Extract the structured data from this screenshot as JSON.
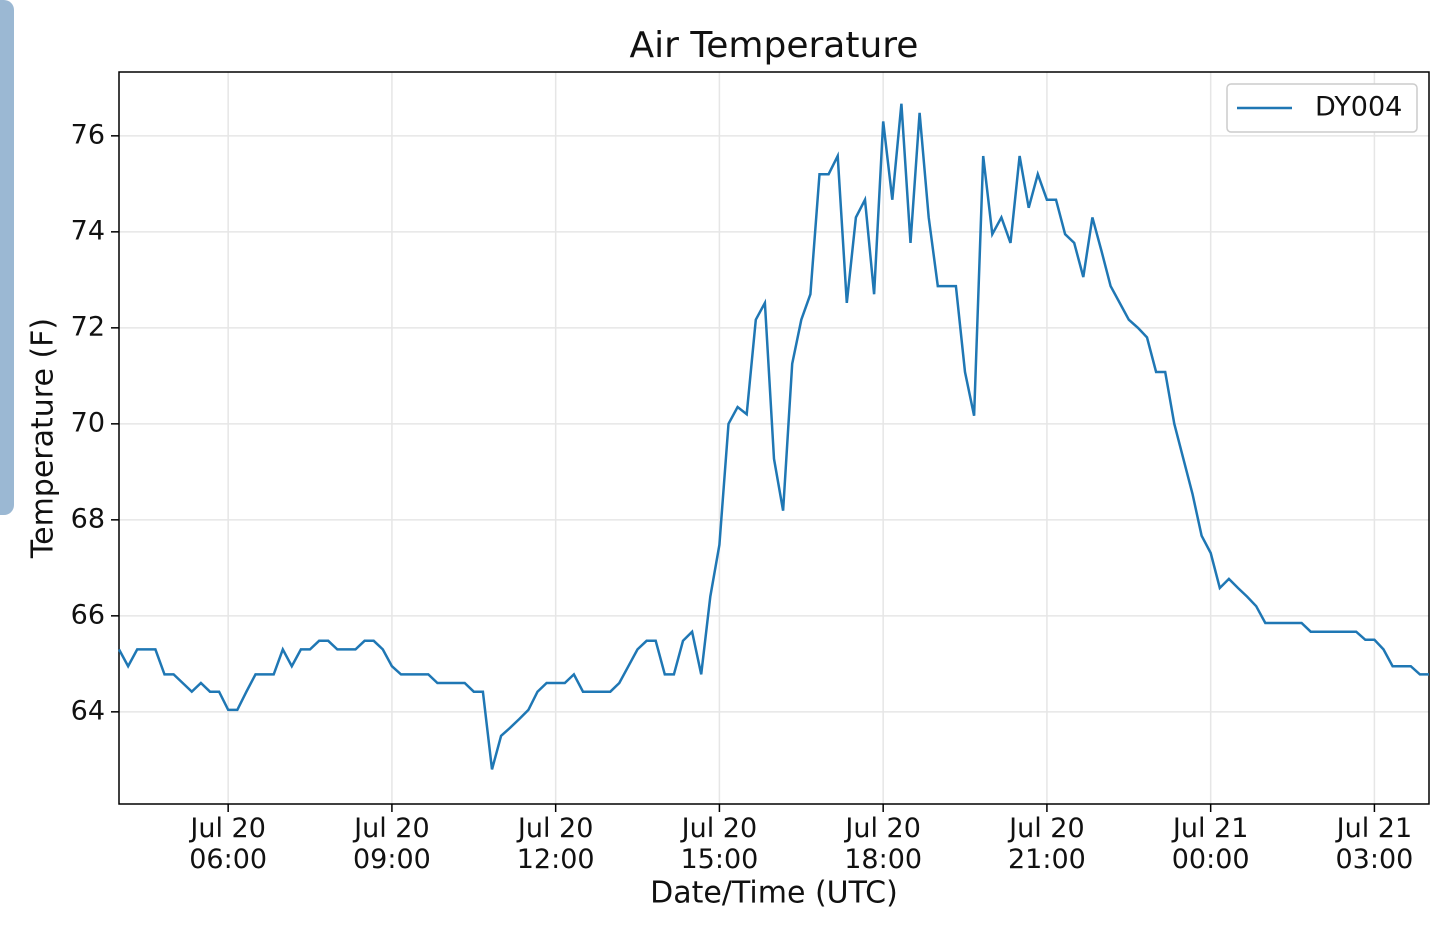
{
  "chart_data": {
    "type": "line",
    "title": "Air Temperature",
    "x_label": "Date/Time (UTC)",
    "y_label": "Temperature (F)",
    "x": [
      "Jul 20 04:00",
      "Jul 20 04:10",
      "Jul 20 04:20",
      "Jul 20 04:30",
      "Jul 20 04:40",
      "Jul 20 04:50",
      "Jul 20 05:00",
      "Jul 20 05:10",
      "Jul 20 05:20",
      "Jul 20 05:30",
      "Jul 20 05:40",
      "Jul 20 05:50",
      "Jul 20 06:00",
      "Jul 20 06:10",
      "Jul 20 06:20",
      "Jul 20 06:30",
      "Jul 20 06:40",
      "Jul 20 06:50",
      "Jul 20 07:00",
      "Jul 20 07:10",
      "Jul 20 07:20",
      "Jul 20 07:30",
      "Jul 20 07:40",
      "Jul 20 07:50",
      "Jul 20 08:00",
      "Jul 20 08:10",
      "Jul 20 08:20",
      "Jul 20 08:30",
      "Jul 20 08:40",
      "Jul 20 08:50",
      "Jul 20 09:00",
      "Jul 20 09:10",
      "Jul 20 09:20",
      "Jul 20 09:30",
      "Jul 20 09:40",
      "Jul 20 09:50",
      "Jul 20 10:00",
      "Jul 20 10:10",
      "Jul 20 10:20",
      "Jul 20 10:30",
      "Jul 20 10:40",
      "Jul 20 10:50",
      "Jul 20 11:00",
      "Jul 20 11:10",
      "Jul 20 11:20",
      "Jul 20 11:30",
      "Jul 20 11:40",
      "Jul 20 11:50",
      "Jul 20 12:00",
      "Jul 20 12:10",
      "Jul 20 12:20",
      "Jul 20 12:30",
      "Jul 20 12:40",
      "Jul 20 12:50",
      "Jul 20 13:00",
      "Jul 20 13:10",
      "Jul 20 13:20",
      "Jul 20 13:30",
      "Jul 20 13:40",
      "Jul 20 13:50",
      "Jul 20 14:00",
      "Jul 20 14:10",
      "Jul 20 14:20",
      "Jul 20 14:30",
      "Jul 20 14:40",
      "Jul 20 14:50",
      "Jul 20 15:00",
      "Jul 20 15:10",
      "Jul 20 15:20",
      "Jul 20 15:30",
      "Jul 20 15:40",
      "Jul 20 15:50",
      "Jul 20 16:00",
      "Jul 20 16:10",
      "Jul 20 16:20",
      "Jul 20 16:30",
      "Jul 20 16:40",
      "Jul 20 16:50",
      "Jul 20 17:00",
      "Jul 20 17:10",
      "Jul 20 17:20",
      "Jul 20 17:30",
      "Jul 20 17:40",
      "Jul 20 17:50",
      "Jul 20 18:00",
      "Jul 20 18:10",
      "Jul 20 18:20",
      "Jul 20 18:30",
      "Jul 20 18:40",
      "Jul 20 18:50",
      "Jul 20 19:00",
      "Jul 20 19:10",
      "Jul 20 19:20",
      "Jul 20 19:30",
      "Jul 20 19:40",
      "Jul 20 19:50",
      "Jul 20 20:00",
      "Jul 20 20:10",
      "Jul 20 20:20",
      "Jul 20 20:30",
      "Jul 20 20:40",
      "Jul 20 20:50",
      "Jul 20 21:00",
      "Jul 20 21:10",
      "Jul 20 21:20",
      "Jul 20 21:30",
      "Jul 20 21:40",
      "Jul 20 21:50",
      "Jul 20 22:00",
      "Jul 20 22:10",
      "Jul 20 22:20",
      "Jul 20 22:30",
      "Jul 20 22:40",
      "Jul 20 22:50",
      "Jul 20 23:00",
      "Jul 20 23:10",
      "Jul 20 23:20",
      "Jul 20 23:30",
      "Jul 20 23:40",
      "Jul 20 23:50",
      "Jul 21 00:00",
      "Jul 21 00:10",
      "Jul 21 00:20",
      "Jul 21 00:30",
      "Jul 21 00:40",
      "Jul 21 00:50",
      "Jul 21 01:00",
      "Jul 21 01:10",
      "Jul 21 01:20",
      "Jul 21 01:30",
      "Jul 21 01:40",
      "Jul 21 01:50",
      "Jul 21 02:00",
      "Jul 21 02:10",
      "Jul 21 02:20",
      "Jul 21 02:30",
      "Jul 21 02:40",
      "Jul 21 02:50",
      "Jul 21 03:00",
      "Jul 21 03:10",
      "Jul 21 03:20",
      "Jul 21 03:30",
      "Jul 21 03:40",
      "Jul 21 03:50",
      "Jul 21 04:00"
    ],
    "series": [
      {
        "name": "DY004",
        "color": "#1f77b4",
        "values": [
          65.3,
          64.95,
          65.3,
          65.3,
          65.3,
          64.78,
          64.78,
          64.6,
          64.42,
          64.6,
          64.42,
          64.42,
          64.04,
          64.04,
          64.42,
          64.78,
          64.78,
          64.78,
          65.3,
          64.95,
          65.3,
          65.3,
          65.48,
          65.48,
          65.3,
          65.3,
          65.3,
          65.48,
          65.48,
          65.3,
          64.95,
          64.78,
          64.78,
          64.78,
          64.78,
          64.6,
          64.6,
          64.6,
          64.6,
          64.42,
          64.42,
          62.8,
          63.5,
          63.67,
          63.85,
          64.04,
          64.42,
          64.6,
          64.6,
          64.6,
          64.78,
          64.42,
          64.42,
          64.42,
          64.42,
          64.6,
          64.95,
          65.3,
          65.48,
          65.48,
          64.78,
          64.78,
          65.48,
          65.67,
          64.78,
          66.4,
          67.48,
          70.0,
          70.35,
          70.2,
          72.17,
          72.52,
          69.27,
          68.19,
          71.25,
          72.17,
          72.7,
          75.2,
          75.2,
          75.58,
          72.52,
          74.3,
          74.67,
          72.7,
          76.3,
          74.67,
          76.67,
          73.77,
          76.48,
          74.3,
          72.87,
          72.87,
          72.87,
          71.08,
          70.17,
          75.58,
          73.95,
          74.3,
          73.77,
          75.58,
          74.5,
          75.2,
          74.67,
          74.67,
          73.95,
          73.77,
          73.06,
          74.3,
          73.6,
          72.87,
          72.52,
          72.17,
          72.0,
          71.8,
          71.08,
          71.08,
          70.0,
          69.27,
          68.54,
          67.67,
          67.31,
          66.58,
          66.77,
          66.58,
          66.4,
          66.2,
          65.85,
          65.85,
          65.85,
          65.85,
          65.85,
          65.67,
          65.67,
          65.67,
          65.67,
          65.67,
          65.67,
          65.5,
          65.5,
          65.3,
          64.95,
          64.95,
          64.95,
          64.78,
          64.78
        ]
      }
    ],
    "xlim": [
      "Jul 20 04:00",
      "Jul 21 04:00"
    ],
    "xticks": [
      {
        "value": "Jul 20 06:00",
        "label": "Jul 20\n06:00"
      },
      {
        "value": "Jul 20 09:00",
        "label": "Jul 20\n09:00"
      },
      {
        "value": "Jul 20 12:00",
        "label": "Jul 20\n12:00"
      },
      {
        "value": "Jul 20 15:00",
        "label": "Jul 20\n15:00"
      },
      {
        "value": "Jul 20 18:00",
        "label": "Jul 20\n18:00"
      },
      {
        "value": "Jul 20 21:00",
        "label": "Jul 20\n21:00"
      },
      {
        "value": "Jul 21 00:00",
        "label": "Jul 21\n00:00"
      },
      {
        "value": "Jul 21 03:00",
        "label": "Jul 21\n03:00"
      }
    ],
    "ylim": [
      62.08,
      77.33
    ],
    "yticks": [
      64,
      66,
      68,
      70,
      72,
      74,
      76
    ],
    "grid": true,
    "legend": "upper right"
  }
}
